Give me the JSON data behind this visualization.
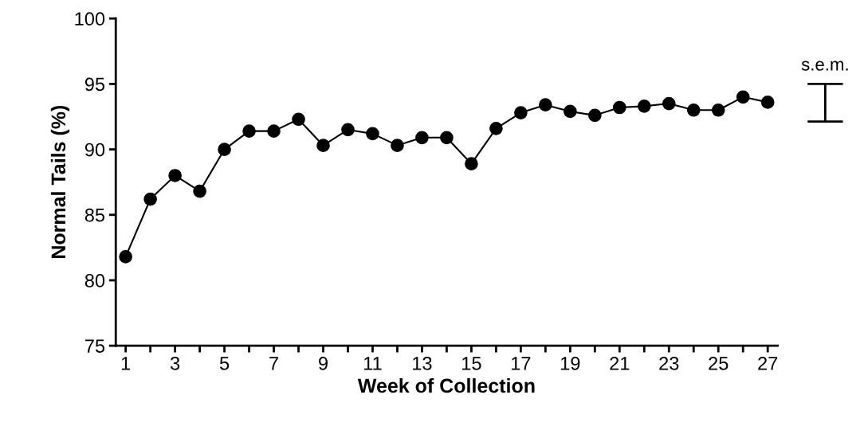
{
  "chart_data": {
    "type": "line",
    "xlabel": "Week of Collection",
    "ylabel": "Normal Tails (%)",
    "x": [
      1,
      2,
      3,
      4,
      5,
      6,
      7,
      8,
      9,
      10,
      11,
      12,
      13,
      14,
      15,
      16,
      17,
      18,
      19,
      20,
      21,
      22,
      23,
      24,
      25,
      26,
      27
    ],
    "series": [
      {
        "color": "#000000",
        "values": [
          81.8,
          86.2,
          88.0,
          86.8,
          90.0,
          91.4,
          91.4,
          92.3,
          90.3,
          91.5,
          91.2,
          90.3,
          90.9,
          90.9,
          88.9,
          91.6,
          92.8,
          93.4,
          92.9,
          92.6,
          93.2,
          93.3,
          93.5,
          93.0,
          93.0,
          94.0,
          93.6
        ]
      }
    ],
    "marker": "circle",
    "line_style": "solid",
    "grid": false,
    "legend": false,
    "xlim": [
      0.6,
      27.4
    ],
    "ylim": [
      75,
      100
    ],
    "yticks": [
      75,
      80,
      85,
      90,
      95,
      100
    ],
    "xticks": [
      1,
      {
        "value": 2,
        "label": null
      },
      3,
      {
        "value": 4,
        "label": null
      },
      5,
      {
        "value": 6,
        "label": null
      },
      7,
      {
        "value": 8,
        "label": null
      },
      9,
      {
        "value": 10,
        "label": null
      },
      11,
      {
        "value": 12,
        "label": null
      },
      13,
      {
        "value": 14,
        "label": null
      },
      15,
      {
        "value": 16,
        "label": null
      },
      17,
      {
        "value": 18,
        "label": null
      },
      19,
      {
        "value": 20,
        "label": null
      },
      21,
      {
        "value": 22,
        "label": null
      },
      23,
      {
        "value": 24,
        "label": null
      },
      25,
      {
        "value": 26,
        "label": null
      },
      27
    ],
    "annotations": [
      "s.e.m."
    ]
  }
}
